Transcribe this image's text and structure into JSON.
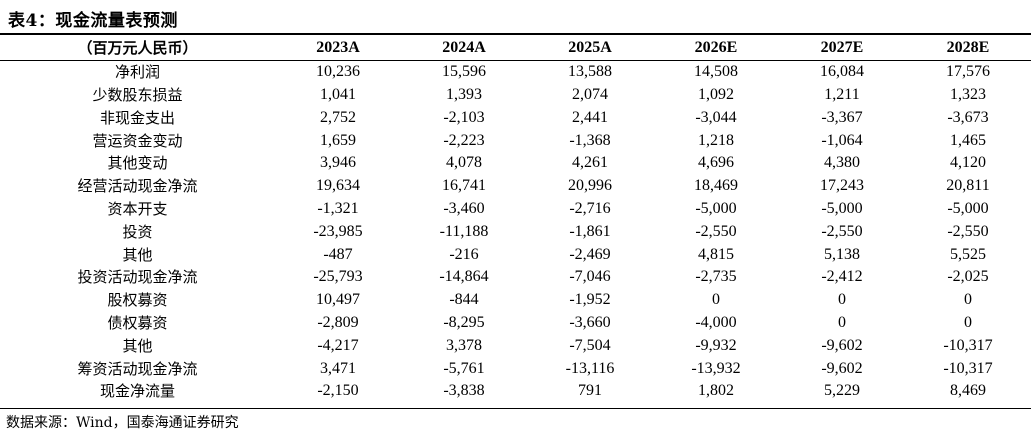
{
  "title": "表4：现金流量表预测",
  "header": {
    "unit": "（百万元人民币）",
    "years": [
      "2023A",
      "2024A",
      "2025A",
      "2026E",
      "2027E",
      "2028E"
    ]
  },
  "rows": [
    {
      "label": "净利润",
      "values": [
        "10,236",
        "15,596",
        "13,588",
        "14,508",
        "16,084",
        "17,576"
      ]
    },
    {
      "label": "少数股东损益",
      "values": [
        "1,041",
        "1,393",
        "2,074",
        "1,092",
        "1,211",
        "1,323"
      ]
    },
    {
      "label": "非现金支出",
      "values": [
        "2,752",
        "-2,103",
        "2,441",
        "-3,044",
        "-3,367",
        "-3,673"
      ]
    },
    {
      "label": "营运资金变动",
      "values": [
        "1,659",
        "-2,223",
        "-1,368",
        "1,218",
        "-1,064",
        "1,465"
      ]
    },
    {
      "label": "其他变动",
      "values": [
        "3,946",
        "4,078",
        "4,261",
        "4,696",
        "4,380",
        "4,120"
      ]
    },
    {
      "label": "经营活动现金净流",
      "values": [
        "19,634",
        "16,741",
        "20,996",
        "18,469",
        "17,243",
        "20,811"
      ]
    },
    {
      "label": "资本开支",
      "values": [
        "-1,321",
        "-3,460",
        "-2,716",
        "-5,000",
        "-5,000",
        "-5,000"
      ]
    },
    {
      "label": "投资",
      "values": [
        "-23,985",
        "-11,188",
        "-1,861",
        "-2,550",
        "-2,550",
        "-2,550"
      ]
    },
    {
      "label": "其他",
      "values": [
        "-487",
        "-216",
        "-2,469",
        "4,815",
        "5,138",
        "5,525"
      ]
    },
    {
      "label": "投资活动现金净流",
      "values": [
        "-25,793",
        "-14,864",
        "-7,046",
        "-2,735",
        "-2,412",
        "-2,025"
      ]
    },
    {
      "label": "股权募资",
      "values": [
        "10,497",
        "-844",
        "-1,952",
        "0",
        "0",
        "0"
      ]
    },
    {
      "label": "债权募资",
      "values": [
        "-2,809",
        "-8,295",
        "-3,660",
        "-4,000",
        "0",
        "0"
      ]
    },
    {
      "label": "其他",
      "values": [
        "-4,217",
        "3,378",
        "-7,504",
        "-9,932",
        "-9,602",
        "-10,317"
      ]
    },
    {
      "label": "筹资活动现金净流",
      "values": [
        "3,471",
        "-5,761",
        "-13,116",
        "-13,932",
        "-9,602",
        "-10,317"
      ]
    },
    {
      "label": "现金净流量",
      "values": [
        "-2,150",
        "-3,838",
        "791",
        "1,802",
        "5,229",
        "8,469"
      ]
    }
  ],
  "source": "数据来源：Wind，国泰海通证券研究"
}
